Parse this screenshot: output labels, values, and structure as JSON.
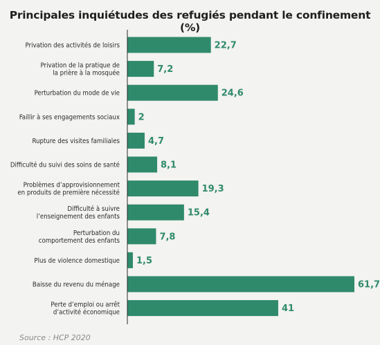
{
  "chart_data": {
    "type": "bar",
    "orientation": "horizontal",
    "title": "Principales inquiétudes des refugiés pendant le confinement (%)",
    "categories": [
      "Privation des activités de loisirs",
      "Privation de la pratique de\nla prière à la mosquée",
      "Perturbation du mode de vie",
      "Faillir à ses engagements sociaux",
      "Rupture des visites familiales",
      "Difficulté du suivi des soins de santé",
      "Problèmes d’approvisionnement\nen produits de première nécessité",
      "Difficulté à suivre\nl’enseignement des enfants",
      "Perturbation du\ncomportement des enfants",
      "Plus de violence domestique",
      "Baisse du revenu du ménage",
      "Perte d’emploi ou arrêt\nd’activité économique"
    ],
    "values": [
      22.7,
      7.2,
      24.6,
      2,
      4.7,
      8.1,
      19.3,
      15.4,
      7.8,
      1.5,
      61.7,
      41
    ],
    "value_labels": [
      "22,7",
      "7,2",
      "24,6",
      "2",
      "4,7",
      "8,1",
      "19,3",
      "15,4",
      "7,8",
      "1,5",
      "61,7",
      "41"
    ],
    "xlim": [
      0,
      61.7
    ],
    "grid": false,
    "bar_color": "#2f8a6c",
    "value_label_color": "#2f8a6c",
    "axis_color": "#2a2a2a"
  },
  "source": "Source : HCP 2020"
}
